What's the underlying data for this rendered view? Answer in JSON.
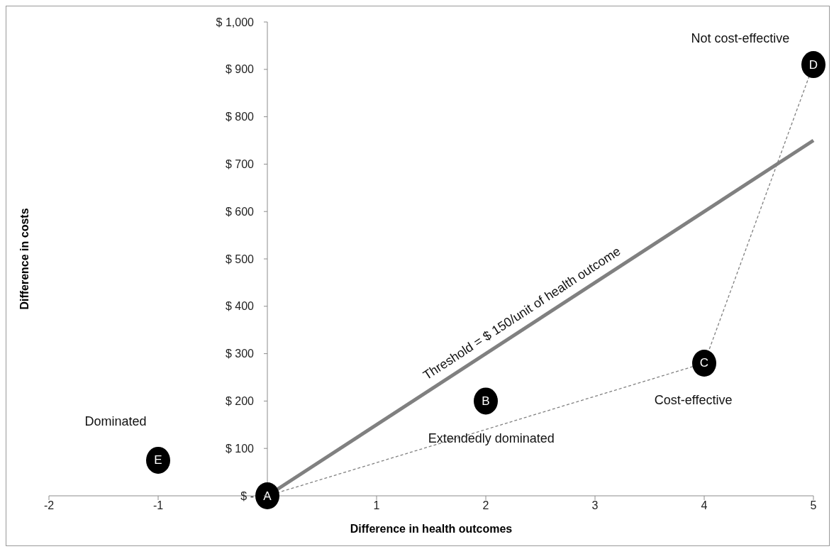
{
  "chart_data": {
    "type": "scatter",
    "xlabel": "Difference in health outcomes",
    "ylabel": "Difference in costs",
    "xlim": [
      -2,
      5
    ],
    "xticks": [
      -2,
      -1,
      1,
      2,
      3,
      4,
      5
    ],
    "ylim": [
      0,
      1000
    ],
    "yticks": [
      {
        "value": 0,
        "label": "$ -"
      },
      {
        "value": 100,
        "label": "$ 100"
      },
      {
        "value": 200,
        "label": "$ 200"
      },
      {
        "value": 300,
        "label": "$ 300"
      },
      {
        "value": 400,
        "label": "$ 400"
      },
      {
        "value": 500,
        "label": "$ 500"
      },
      {
        "value": 600,
        "label": "$ 600"
      },
      {
        "value": 700,
        "label": "$ 700"
      },
      {
        "value": 800,
        "label": "$ 800"
      },
      {
        "value": 900,
        "label": "$ 900"
      },
      {
        "value": 1000,
        "label": "$ 1,000"
      }
    ],
    "series": [
      {
        "type": "line",
        "color": "#808080",
        "x": [
          0,
          5
        ],
        "values": [
          0,
          750
        ],
        "line_style": "solid",
        "marker": "none"
      },
      {
        "type": "line",
        "color": "#808080",
        "x": [
          0,
          4,
          5
        ],
        "values": [
          0,
          280,
          910
        ],
        "line_style": "dashed",
        "marker": "none"
      },
      {
        "name": "A",
        "color": "#000000",
        "x": [
          0
        ],
        "values": [
          0
        ],
        "marker": "circle"
      },
      {
        "name": "B",
        "color": "#000000",
        "x": [
          2
        ],
        "values": [
          200
        ],
        "marker": "circle"
      },
      {
        "name": "C",
        "color": "#000000",
        "x": [
          4
        ],
        "values": [
          280
        ],
        "marker": "circle"
      },
      {
        "name": "D",
        "color": "#000000",
        "x": [
          5
        ],
        "values": [
          910
        ],
        "marker": "circle"
      },
      {
        "name": "E",
        "color": "#000000",
        "x": [
          -1
        ],
        "values": [
          75
        ],
        "marker": "circle"
      }
    ],
    "annotations": [
      {
        "text": "Threshold = $ 150/unit of health outcome",
        "x": 2.4,
        "y": 360
      },
      "Not cost-effective",
      "Cost-effective",
      "Extendedly dominated",
      "Dominated"
    ]
  }
}
